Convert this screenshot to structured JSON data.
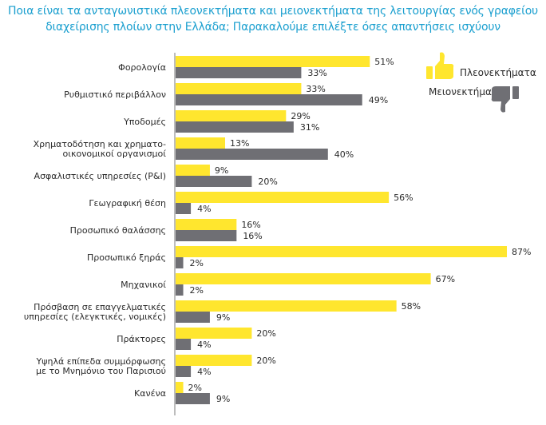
{
  "chart_data": {
    "type": "bar",
    "orientation": "horizontal",
    "title": "Ποια είναι τα ανταγωνιστικά πλεονεκτήματα και μειονεκτήματα της λειτουργίας ενός γραφείου διαχείρισης πλοίων στην Ελλάδα; Παρακαλούμε επιλέξτε όσες απαντήσεις ισχύουν",
    "title_lines": [
      "Ποια είναι τα ανταγωνιστικά πλεονεκτήματα και μειονεκτήματα της λειτουργίας ενός γραφείου",
      "διαχείρισης πλοίων στην Ελλάδα; Παρακαλούμε επιλέξτε όσες απαντήσεις ισχύουν"
    ],
    "categories": [
      [
        "Φορολογία"
      ],
      [
        "Ρυθμιστικό περιβάλλον"
      ],
      [
        "Υποδομές"
      ],
      [
        "Χρηματοδότηση και χρηματο-",
        "οικονομικοί οργανισμοί"
      ],
      [
        "Ασφαλιστικές υπηρεσίες (P&I)"
      ],
      [
        "Γεωγραφική θέση"
      ],
      [
        "Προσωπικό θαλάσσης"
      ],
      [
        "Προσωπικό ξηράς"
      ],
      [
        "Μηχανικοί"
      ],
      [
        "Πρόσβαση σε επαγγελματικές",
        "υπηρεσίες (ελεγκτικές, νομικές)"
      ],
      [
        "Πράκτορες"
      ],
      [
        "Υψηλά επίπεδα συμμόρφωσης",
        "με το Μνημόνιο του Παρισιού"
      ],
      [
        "Κανένα"
      ]
    ],
    "series": [
      {
        "name": "Πλεονεκτήματα",
        "color": "#ffe62e",
        "values": [
          51,
          33,
          29,
          13,
          9,
          56,
          16,
          87,
          67,
          58,
          20,
          20,
          2
        ]
      },
      {
        "name": "Μειονεκτήματα",
        "color": "#6f6f74",
        "values": [
          33,
          49,
          31,
          40,
          20,
          4,
          16,
          2,
          2,
          9,
          4,
          4,
          9
        ]
      }
    ],
    "xlim": [
      0,
      100
    ],
    "value_suffix": "%",
    "legend": "top-right",
    "title_color": "#1a9fcf"
  }
}
